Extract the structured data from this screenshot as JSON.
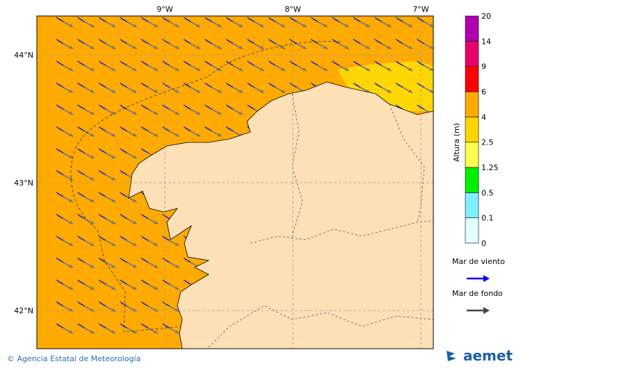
{
  "map": {
    "lon_labels": [
      "9°W",
      "8°W",
      "7°W"
    ],
    "lat_labels": [
      "44°N",
      "43°N",
      "42°N"
    ]
  },
  "colorbar": {
    "title": "Altura (m)",
    "levels": [
      {
        "label": "0",
        "color": "#e0ffff"
      },
      {
        "label": "0.1",
        "color": "#80eeff"
      },
      {
        "label": "0.5",
        "color": "#00f000"
      },
      {
        "label": "1.25",
        "color": "#ffff50"
      },
      {
        "label": "2.5",
        "color": "#ffd700"
      },
      {
        "label": "4",
        "color": "#ffaa00"
      },
      {
        "label": "6",
        "color": "#ff0000"
      },
      {
        "label": "9",
        "color": "#e8006a"
      },
      {
        "label": "14",
        "color": "#b000b0"
      }
    ],
    "top_label": "20"
  },
  "legend": {
    "items": [
      {
        "label": "Mar de viento",
        "color": "#0000ee"
      },
      {
        "label": "Mar de fondo",
        "color": "#444444"
      }
    ]
  },
  "footer": {
    "credit": "© Agencia Estatal de Meteorología",
    "logo": "aemet"
  }
}
